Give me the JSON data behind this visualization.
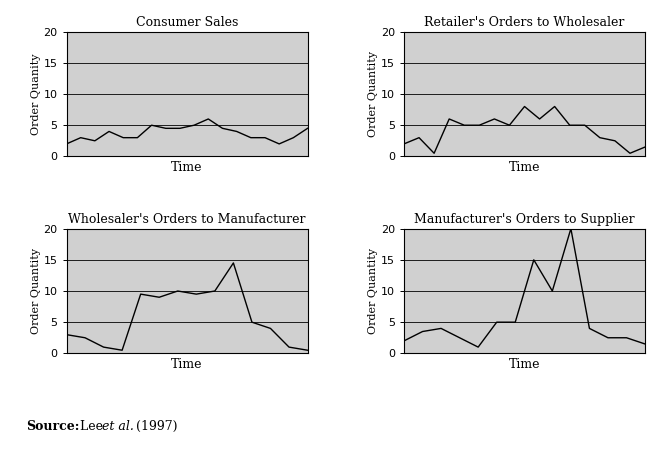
{
  "panels": [
    {
      "title": "Consumer Sales",
      "ylabel": "Order Quanity",
      "y": [
        2.0,
        3.0,
        2.5,
        4.0,
        3.0,
        3.0,
        5.0,
        4.5,
        4.5,
        5.0,
        6.0,
        4.5,
        4.0,
        3.0,
        3.0,
        2.0,
        3.0,
        4.5
      ]
    },
    {
      "title": "Retailer's Orders to Wholesaler",
      "ylabel": "Order Quantity",
      "y": [
        2.0,
        3.0,
        0.5,
        6.0,
        5.0,
        5.0,
        6.0,
        5.0,
        8.0,
        6.0,
        8.0,
        5.0,
        5.0,
        3.0,
        2.5,
        0.5,
        1.5
      ]
    },
    {
      "title": "Wholesaler's Orders to Manufacturer",
      "ylabel": "Order Quantity",
      "y": [
        3.0,
        2.5,
        1.0,
        0.5,
        9.5,
        9.0,
        10.0,
        9.5,
        10.0,
        14.5,
        5.0,
        4.0,
        1.0,
        0.5
      ]
    },
    {
      "title": "Manufacturer's Orders to Supplier",
      "ylabel": "Order Quantity",
      "y": [
        2.0,
        3.5,
        4.0,
        2.5,
        1.0,
        5.0,
        5.0,
        15.0,
        10.0,
        20.0,
        4.0,
        2.5,
        2.5,
        1.5
      ]
    }
  ],
  "ylim": [
    0,
    20
  ],
  "yticks": [
    0,
    5,
    10,
    15,
    20
  ],
  "xlabel": "Time",
  "bg_color": "#d0d0d0",
  "line_color": "#000000",
  "fig_bg": "#ffffff"
}
